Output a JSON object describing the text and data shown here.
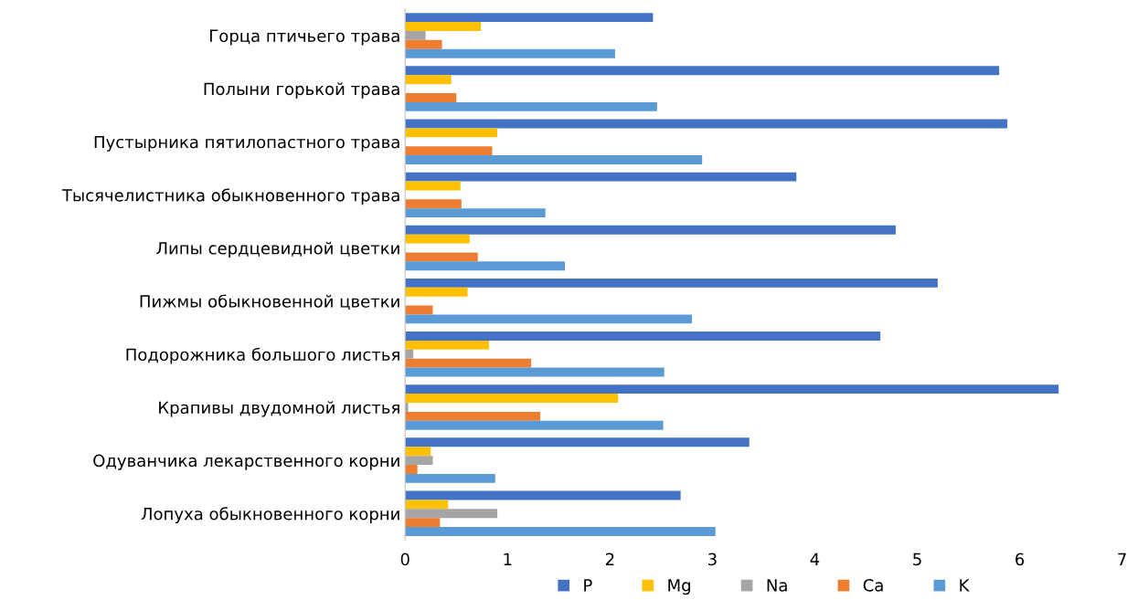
{
  "chart_data": {
    "type": "bar",
    "orientation": "horizontal",
    "categories": [
      "Горца птичьего трава",
      "Полыни горькой трава",
      "Пустырника пятилопастного трава",
      "Тысячелистника обыкновенного трава",
      "Липы сердцевидной цветки",
      "Пижмы обыкновенной цветки",
      "Подорожника большого листья",
      "Крапивы двудомной листья",
      "Одуванчика лекарственного корни",
      "Лопуха обыкновенного корни"
    ],
    "series": [
      {
        "name": "P",
        "color": "#4472c4",
        "values": [
          2.42,
          5.8,
          5.88,
          3.82,
          4.79,
          5.2,
          4.64,
          6.38,
          3.36,
          2.69
        ]
      },
      {
        "name": "Mg",
        "color": "#ffc000",
        "values": [
          0.74,
          0.45,
          0.9,
          0.54,
          0.63,
          0.61,
          0.82,
          2.08,
          0.25,
          0.42
        ]
      },
      {
        "name": "Na",
        "color": "#a5a5a5",
        "values": [
          0.2,
          0,
          0,
          0,
          0,
          0,
          0.08,
          0.03,
          0.27,
          0.9
        ]
      },
      {
        "name": "Ca",
        "color": "#ed7d31",
        "values": [
          0.36,
          0.5,
          0.85,
          0.55,
          0.71,
          0.27,
          1.23,
          1.32,
          0.12,
          0.34
        ]
      },
      {
        "name": "K",
        "color": "#5b9bd5",
        "values": [
          2.05,
          2.46,
          2.9,
          1.37,
          1.56,
          2.8,
          2.53,
          2.52,
          0.88,
          3.03
        ]
      }
    ],
    "xlim": [
      0,
      7
    ],
    "xticks": [
      0,
      1,
      2,
      3,
      4,
      5,
      6,
      7
    ],
    "grid": false,
    "legend": "bottom"
  }
}
